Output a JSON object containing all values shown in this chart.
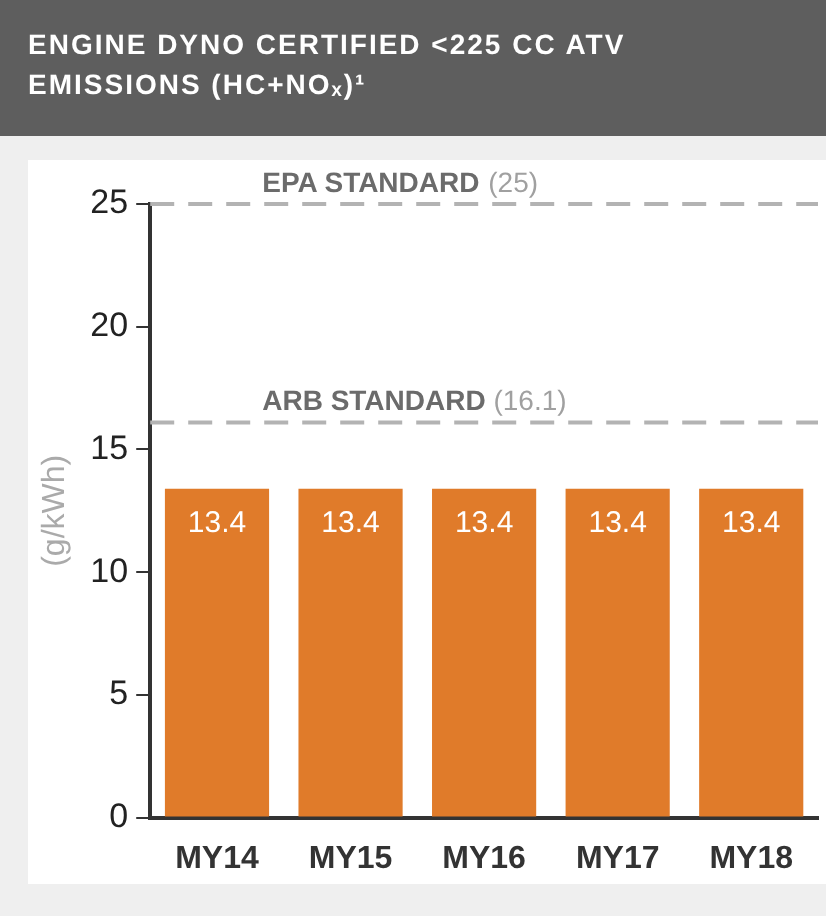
{
  "chart_data": {
    "type": "bar",
    "title": "ENGINE DYNO CERTIFIED <225 CC ATV EMISSIONS (HC+NOₓ)¹",
    "ylabel": "(g/kWh)",
    "categories": [
      "MY14",
      "MY15",
      "MY16",
      "MY17",
      "MY18"
    ],
    "values": [
      13.4,
      13.4,
      13.4,
      13.4,
      13.4
    ],
    "color": "#e07b2a",
    "ylim": [
      0,
      25
    ],
    "yticks": [
      0,
      5,
      10,
      15,
      20,
      25
    ],
    "grid": false,
    "legend": false,
    "data_labels": true,
    "ref_lines": [
      {
        "axis": "y",
        "value": 25,
        "label": "EPA STANDARD (25)",
        "color": "#b3b3b3",
        "line_style": "dashed"
      },
      {
        "axis": "y",
        "value": 16.1,
        "label": "ARB STANDARD (16.1)",
        "color": "#b3b3b3",
        "line_style": "dashed"
      }
    ]
  }
}
